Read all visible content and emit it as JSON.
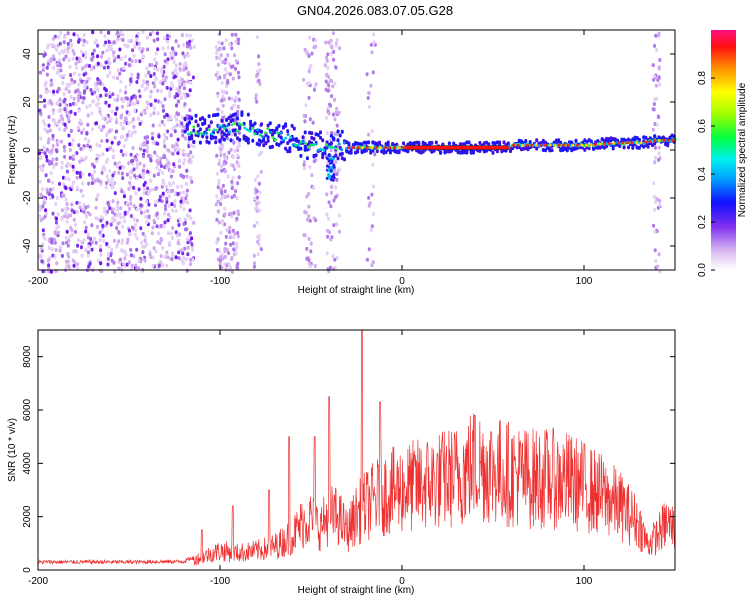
{
  "title": "GN04.2026.083.07.05.G28",
  "chart_data": [
    {
      "type": "heatmap",
      "xlabel": "Height of straight line (km)",
      "ylabel": "Frequency (Hz)",
      "xlim": [
        -200,
        150
      ],
      "ylim": [
        -50,
        50
      ],
      "xticks": [
        -200,
        -100,
        0,
        100
      ],
      "yticks": [
        -40,
        -20,
        0,
        20,
        40
      ],
      "colorbar": {
        "label": "Normalized spectral amplitude",
        "range": [
          0,
          1
        ],
        "ticks": [
          "0.0",
          "0.2",
          "0.4",
          "0.6",
          "0.8"
        ]
      },
      "ridge": {
        "x": [
          -120,
          -100,
          -90,
          -80,
          -70,
          -60,
          -50,
          -40,
          -35,
          -30,
          -20,
          -10,
          0,
          20,
          40,
          58,
          60,
          80,
          100,
          120,
          130,
          140,
          150
        ],
        "freq": [
          8,
          9,
          10,
          8,
          6,
          4,
          2,
          1,
          2,
          1,
          1,
          1,
          1,
          1,
          1,
          1,
          2,
          2,
          2,
          3,
          3,
          4,
          4
        ]
      }
    },
    {
      "type": "line",
      "xlabel": "Height of straight line (km)",
      "ylabel": "SNR (10 * v/v)",
      "xlim": [
        -200,
        150
      ],
      "ylim": [
        0,
        9000
      ],
      "xticks": [
        -200,
        -100,
        0,
        100
      ],
      "yticks": [
        0,
        2000,
        4000,
        6000,
        8000
      ],
      "color": "#ee3030",
      "envelope": {
        "x": [
          -200,
          -150,
          -120,
          -110,
          -100,
          -90,
          -80,
          -70,
          -60,
          -55,
          -50,
          -45,
          -40,
          -35,
          -30,
          -25,
          -20,
          -15,
          -10,
          0,
          10,
          20,
          30,
          40,
          50,
          60,
          70,
          80,
          90,
          100,
          110,
          120,
          130,
          135,
          140,
          145,
          150
        ],
        "y": [
          300,
          300,
          320,
          600,
          900,
          800,
          900,
          1100,
          1600,
          2200,
          2400,
          2000,
          2600,
          2500,
          1800,
          2600,
          3000,
          3300,
          3600,
          3800,
          4000,
          4200,
          4400,
          5000,
          4700,
          4500,
          4300,
          4300,
          4200,
          3900,
          3500,
          3000,
          2200,
          1200,
          1600,
          2200,
          2000
        ]
      },
      "peaks": [
        {
          "x": -110,
          "y": 1500
        },
        {
          "x": -93,
          "y": 2400
        },
        {
          "x": -73,
          "y": 3000
        },
        {
          "x": -62,
          "y": 5000
        },
        {
          "x": -48,
          "y": 5000
        },
        {
          "x": -40,
          "y": 6500
        },
        {
          "x": -22,
          "y": 9000
        },
        {
          "x": -12,
          "y": 6300
        },
        {
          "x": 40,
          "y": 5800
        }
      ]
    }
  ]
}
